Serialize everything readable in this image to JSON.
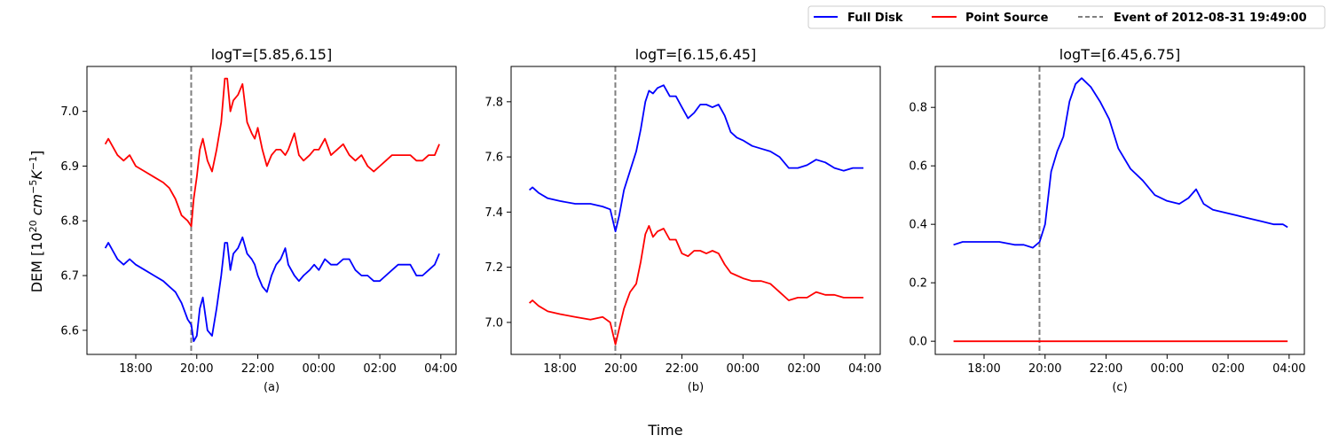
{
  "figure": {
    "ylabel": "DEM [10",
    "ylabel_sup1": "20",
    "ylabel_unit": "cm",
    "ylabel_sup2": "−5",
    "ylabel_K": "K",
    "ylabel_sup3": "−1",
    "ylabel_close": "]",
    "xlabel": "Time"
  },
  "legend": {
    "placement": "top-right, outside",
    "entries": [
      {
        "label": "Full Disk",
        "color": "#0000ff",
        "style": "solid"
      },
      {
        "label": "Point Source",
        "color": "#ff0000",
        "style": "solid"
      },
      {
        "label": "Event of 2012-08-31 19:49:00",
        "color": "#808080",
        "style": "dashed"
      }
    ]
  },
  "colors": {
    "full_disk": "#0000ff",
    "point_source": "#ff0000",
    "event": "#808080"
  },
  "chart_data": [
    {
      "type": "line",
      "title": "logT=[5.85,6.15]",
      "panel_label": "(a)",
      "x_unit": "hours since 2012-08-31 00:00",
      "xticks": [
        18,
        20,
        22,
        24,
        26,
        28
      ],
      "xtick_labels": [
        "18:00",
        "20:00",
        "22:00",
        "00:00",
        "02:00",
        "04:00"
      ],
      "xlim": [
        16.4,
        28.5
      ],
      "ylim": [
        6.556,
        7.082
      ],
      "yticks": [
        6.6,
        6.7,
        6.8,
        6.9,
        7.0
      ],
      "ytick_labels": [
        "6.6",
        "6.7",
        "6.8",
        "6.9",
        "7.0"
      ],
      "event_x": 19.817,
      "series": [
        {
          "name": "Full Disk",
          "color": "#0000ff",
          "x": [
            17.0,
            17.1,
            17.2,
            17.4,
            17.6,
            17.8,
            18.0,
            18.3,
            18.6,
            18.9,
            19.1,
            19.3,
            19.5,
            19.7,
            19.82,
            19.9,
            20.0,
            20.1,
            20.2,
            20.35,
            20.5,
            20.65,
            20.8,
            20.92,
            21.0,
            21.1,
            21.2,
            21.35,
            21.5,
            21.65,
            21.8,
            21.9,
            22.0,
            22.15,
            22.3,
            22.45,
            22.6,
            22.75,
            22.9,
            23.0,
            23.2,
            23.35,
            23.5,
            23.7,
            23.85,
            24.0,
            24.2,
            24.4,
            24.6,
            24.8,
            25.0,
            25.2,
            25.4,
            25.6,
            25.8,
            26.0,
            26.2,
            26.4,
            26.6,
            26.8,
            27.0,
            27.2,
            27.4,
            27.6,
            27.8,
            27.95
          ],
          "values": [
            6.75,
            6.76,
            6.75,
            6.73,
            6.72,
            6.73,
            6.72,
            6.71,
            6.7,
            6.69,
            6.68,
            6.67,
            6.65,
            6.62,
            6.61,
            6.58,
            6.59,
            6.64,
            6.66,
            6.6,
            6.59,
            6.64,
            6.7,
            6.76,
            6.76,
            6.71,
            6.74,
            6.75,
            6.77,
            6.74,
            6.73,
            6.72,
            6.7,
            6.68,
            6.67,
            6.7,
            6.72,
            6.73,
            6.75,
            6.72,
            6.7,
            6.69,
            6.7,
            6.71,
            6.72,
            6.71,
            6.73,
            6.72,
            6.72,
            6.73,
            6.73,
            6.71,
            6.7,
            6.7,
            6.69,
            6.69,
            6.7,
            6.71,
            6.72,
            6.72,
            6.72,
            6.7,
            6.7,
            6.71,
            6.72,
            6.74
          ]
        },
        {
          "name": "Point Source",
          "color": "#ff0000",
          "x": [
            17.0,
            17.1,
            17.2,
            17.4,
            17.6,
            17.8,
            18.0,
            18.3,
            18.6,
            18.9,
            19.1,
            19.3,
            19.5,
            19.7,
            19.82,
            19.9,
            20.0,
            20.1,
            20.2,
            20.35,
            20.5,
            20.65,
            20.8,
            20.92,
            21.0,
            21.1,
            21.2,
            21.35,
            21.5,
            21.65,
            21.8,
            21.9,
            22.0,
            22.15,
            22.3,
            22.45,
            22.6,
            22.75,
            22.9,
            23.0,
            23.2,
            23.35,
            23.5,
            23.7,
            23.85,
            24.0,
            24.2,
            24.4,
            24.6,
            24.8,
            25.0,
            25.2,
            25.4,
            25.6,
            25.8,
            26.0,
            26.2,
            26.4,
            26.6,
            26.8,
            27.0,
            27.2,
            27.4,
            27.6,
            27.8,
            27.95
          ],
          "values": [
            6.94,
            6.95,
            6.94,
            6.92,
            6.91,
            6.92,
            6.9,
            6.89,
            6.88,
            6.87,
            6.86,
            6.84,
            6.81,
            6.8,
            6.79,
            6.84,
            6.88,
            6.93,
            6.95,
            6.91,
            6.89,
            6.93,
            6.98,
            7.06,
            7.06,
            7.0,
            7.02,
            7.03,
            7.05,
            6.98,
            6.96,
            6.95,
            6.97,
            6.93,
            6.9,
            6.92,
            6.93,
            6.93,
            6.92,
            6.93,
            6.96,
            6.92,
            6.91,
            6.92,
            6.93,
            6.93,
            6.95,
            6.92,
            6.93,
            6.94,
            6.92,
            6.91,
            6.92,
            6.9,
            6.89,
            6.9,
            6.91,
            6.92,
            6.92,
            6.92,
            6.92,
            6.91,
            6.91,
            6.92,
            6.92,
            6.94
          ]
        }
      ]
    },
    {
      "type": "line",
      "title": "logT=[6.15,6.45]",
      "panel_label": "(b)",
      "x_unit": "hours since 2012-08-31 00:00",
      "xticks": [
        18,
        20,
        22,
        24,
        26,
        28
      ],
      "xtick_labels": [
        "18:00",
        "20:00",
        "22:00",
        "00:00",
        "02:00",
        "04:00"
      ],
      "xlim": [
        16.4,
        28.5
      ],
      "ylim": [
        6.884,
        7.928
      ],
      "yticks": [
        7.0,
        7.2,
        7.4,
        7.6,
        7.8
      ],
      "ytick_labels": [
        "7.0",
        "7.2",
        "7.4",
        "7.6",
        "7.8"
      ],
      "event_x": 19.817,
      "series": [
        {
          "name": "Full Disk",
          "color": "#0000ff",
          "x": [
            17.0,
            17.1,
            17.3,
            17.6,
            18.0,
            18.5,
            19.0,
            19.4,
            19.65,
            19.82,
            19.95,
            20.1,
            20.3,
            20.5,
            20.65,
            20.8,
            20.92,
            21.05,
            21.2,
            21.4,
            21.6,
            21.8,
            22.0,
            22.2,
            22.4,
            22.6,
            22.8,
            23.0,
            23.2,
            23.4,
            23.6,
            23.8,
            24.0,
            24.3,
            24.6,
            24.9,
            25.2,
            25.5,
            25.8,
            26.1,
            26.4,
            26.7,
            27.0,
            27.3,
            27.6,
            27.95
          ],
          "values": [
            7.48,
            7.49,
            7.47,
            7.45,
            7.44,
            7.43,
            7.43,
            7.42,
            7.41,
            7.33,
            7.39,
            7.48,
            7.55,
            7.62,
            7.7,
            7.8,
            7.84,
            7.83,
            7.85,
            7.86,
            7.82,
            7.82,
            7.78,
            7.74,
            7.76,
            7.79,
            7.79,
            7.78,
            7.79,
            7.75,
            7.69,
            7.67,
            7.66,
            7.64,
            7.63,
            7.62,
            7.6,
            7.56,
            7.56,
            7.57,
            7.59,
            7.58,
            7.56,
            7.55,
            7.56,
            7.56
          ]
        },
        {
          "name": "Point Source",
          "color": "#ff0000",
          "x": [
            17.0,
            17.1,
            17.3,
            17.6,
            18.0,
            18.5,
            19.0,
            19.4,
            19.65,
            19.82,
            19.95,
            20.1,
            20.3,
            20.5,
            20.65,
            20.8,
            20.92,
            21.05,
            21.2,
            21.4,
            21.6,
            21.8,
            22.0,
            22.2,
            22.4,
            22.6,
            22.8,
            23.0,
            23.2,
            23.4,
            23.6,
            23.8,
            24.0,
            24.3,
            24.6,
            24.9,
            25.2,
            25.5,
            25.8,
            26.1,
            26.4,
            26.7,
            27.0,
            27.3,
            27.6,
            27.95
          ],
          "values": [
            7.07,
            7.08,
            7.06,
            7.04,
            7.03,
            7.02,
            7.01,
            7.02,
            7.0,
            6.92,
            6.98,
            7.05,
            7.11,
            7.14,
            7.22,
            7.32,
            7.35,
            7.31,
            7.33,
            7.34,
            7.3,
            7.3,
            7.25,
            7.24,
            7.26,
            7.26,
            7.25,
            7.26,
            7.25,
            7.21,
            7.18,
            7.17,
            7.16,
            7.15,
            7.15,
            7.14,
            7.11,
            7.08,
            7.09,
            7.09,
            7.11,
            7.1,
            7.1,
            7.09,
            7.09,
            7.09
          ]
        }
      ]
    },
    {
      "type": "line",
      "title": "logT=[6.45,6.75]",
      "panel_label": "(c)",
      "x_unit": "hours since 2012-08-31 00:00",
      "xticks": [
        18,
        20,
        22,
        24,
        26,
        28
      ],
      "xtick_labels": [
        "18:00",
        "20:00",
        "22:00",
        "00:00",
        "02:00",
        "04:00"
      ],
      "xlim": [
        16.4,
        28.5
      ],
      "ylim": [
        -0.045,
        0.94
      ],
      "yticks": [
        0.0,
        0.2,
        0.4,
        0.6,
        0.8
      ],
      "ytick_labels": [
        "0.0",
        "0.2",
        "0.4",
        "0.6",
        "0.8"
      ],
      "event_x": 19.817,
      "series": [
        {
          "name": "Full Disk",
          "color": "#0000ff",
          "x": [
            17.0,
            17.3,
            17.6,
            18.0,
            18.5,
            19.0,
            19.3,
            19.6,
            19.82,
            20.0,
            20.2,
            20.4,
            20.6,
            20.8,
            21.0,
            21.2,
            21.5,
            21.8,
            22.1,
            22.4,
            22.8,
            23.2,
            23.6,
            24.0,
            24.4,
            24.7,
            24.95,
            25.2,
            25.5,
            25.9,
            26.3,
            26.7,
            27.1,
            27.5,
            27.8,
            27.95
          ],
          "values": [
            0.33,
            0.34,
            0.34,
            0.34,
            0.34,
            0.33,
            0.33,
            0.32,
            0.34,
            0.4,
            0.58,
            0.65,
            0.7,
            0.82,
            0.88,
            0.9,
            0.87,
            0.82,
            0.76,
            0.66,
            0.59,
            0.55,
            0.5,
            0.48,
            0.47,
            0.49,
            0.52,
            0.47,
            0.45,
            0.44,
            0.43,
            0.42,
            0.41,
            0.4,
            0.4,
            0.39
          ]
        },
        {
          "name": "Point Source",
          "color": "#ff0000",
          "x": [
            17.0,
            27.95
          ],
          "values": [
            0.0,
            0.0
          ]
        }
      ]
    }
  ]
}
